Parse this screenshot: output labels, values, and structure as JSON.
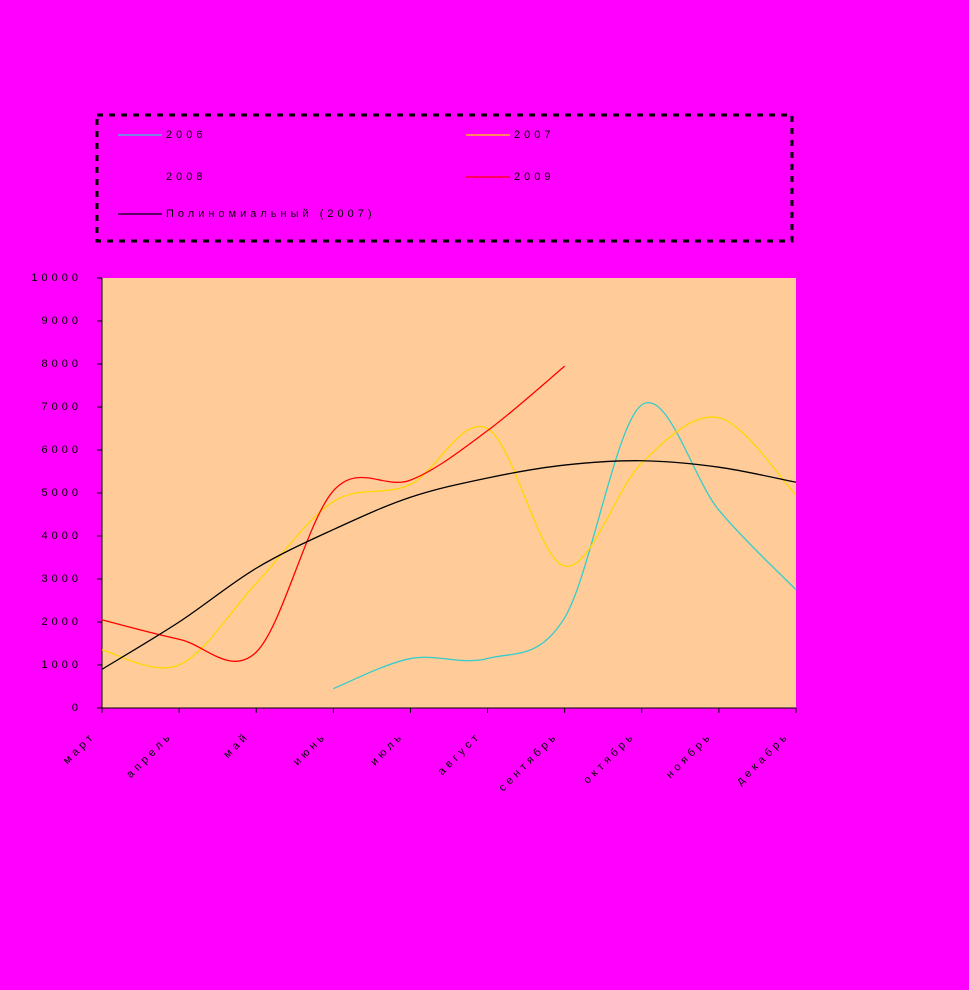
{
  "chart_data": {
    "type": "line",
    "categories": [
      "март",
      "апрель",
      "май",
      "июнь",
      "июль",
      "август",
      "сентябрь",
      "октябрь",
      "ноябрь",
      "декабрь"
    ],
    "series": [
      {
        "name": "2006",
        "color": "#33cccc",
        "values": [
          null,
          null,
          null,
          450,
          1150,
          1150,
          2100,
          7050,
          4600,
          2750
        ]
      },
      {
        "name": "2007",
        "color": "#ffd700",
        "values": [
          1350,
          1000,
          2900,
          4800,
          5200,
          6500,
          3300,
          5700,
          6750,
          4950
        ]
      },
      {
        "name": "2008",
        "color": "#ff00ff",
        "values": [
          null,
          null,
          null,
          null,
          null,
          null,
          null,
          null,
          null,
          null
        ]
      },
      {
        "name": "2009",
        "color": "#ff0000",
        "values": [
          2050,
          1600,
          1300,
          5050,
          5300,
          6450,
          7950,
          null,
          null,
          null
        ]
      },
      {
        "name": "Полиномиальный (2007)",
        "color": "#000000",
        "values": [
          900,
          2000,
          3250,
          4150,
          4900,
          5350,
          5650,
          5750,
          5600,
          5250
        ]
      }
    ],
    "ylim": [
      0,
      10000
    ],
    "yticks": [
      0,
      1000,
      2000,
      3000,
      4000,
      5000,
      6000,
      7000,
      8000,
      9000,
      10000
    ],
    "smooth": true,
    "plot_color": "#ffcc99"
  }
}
